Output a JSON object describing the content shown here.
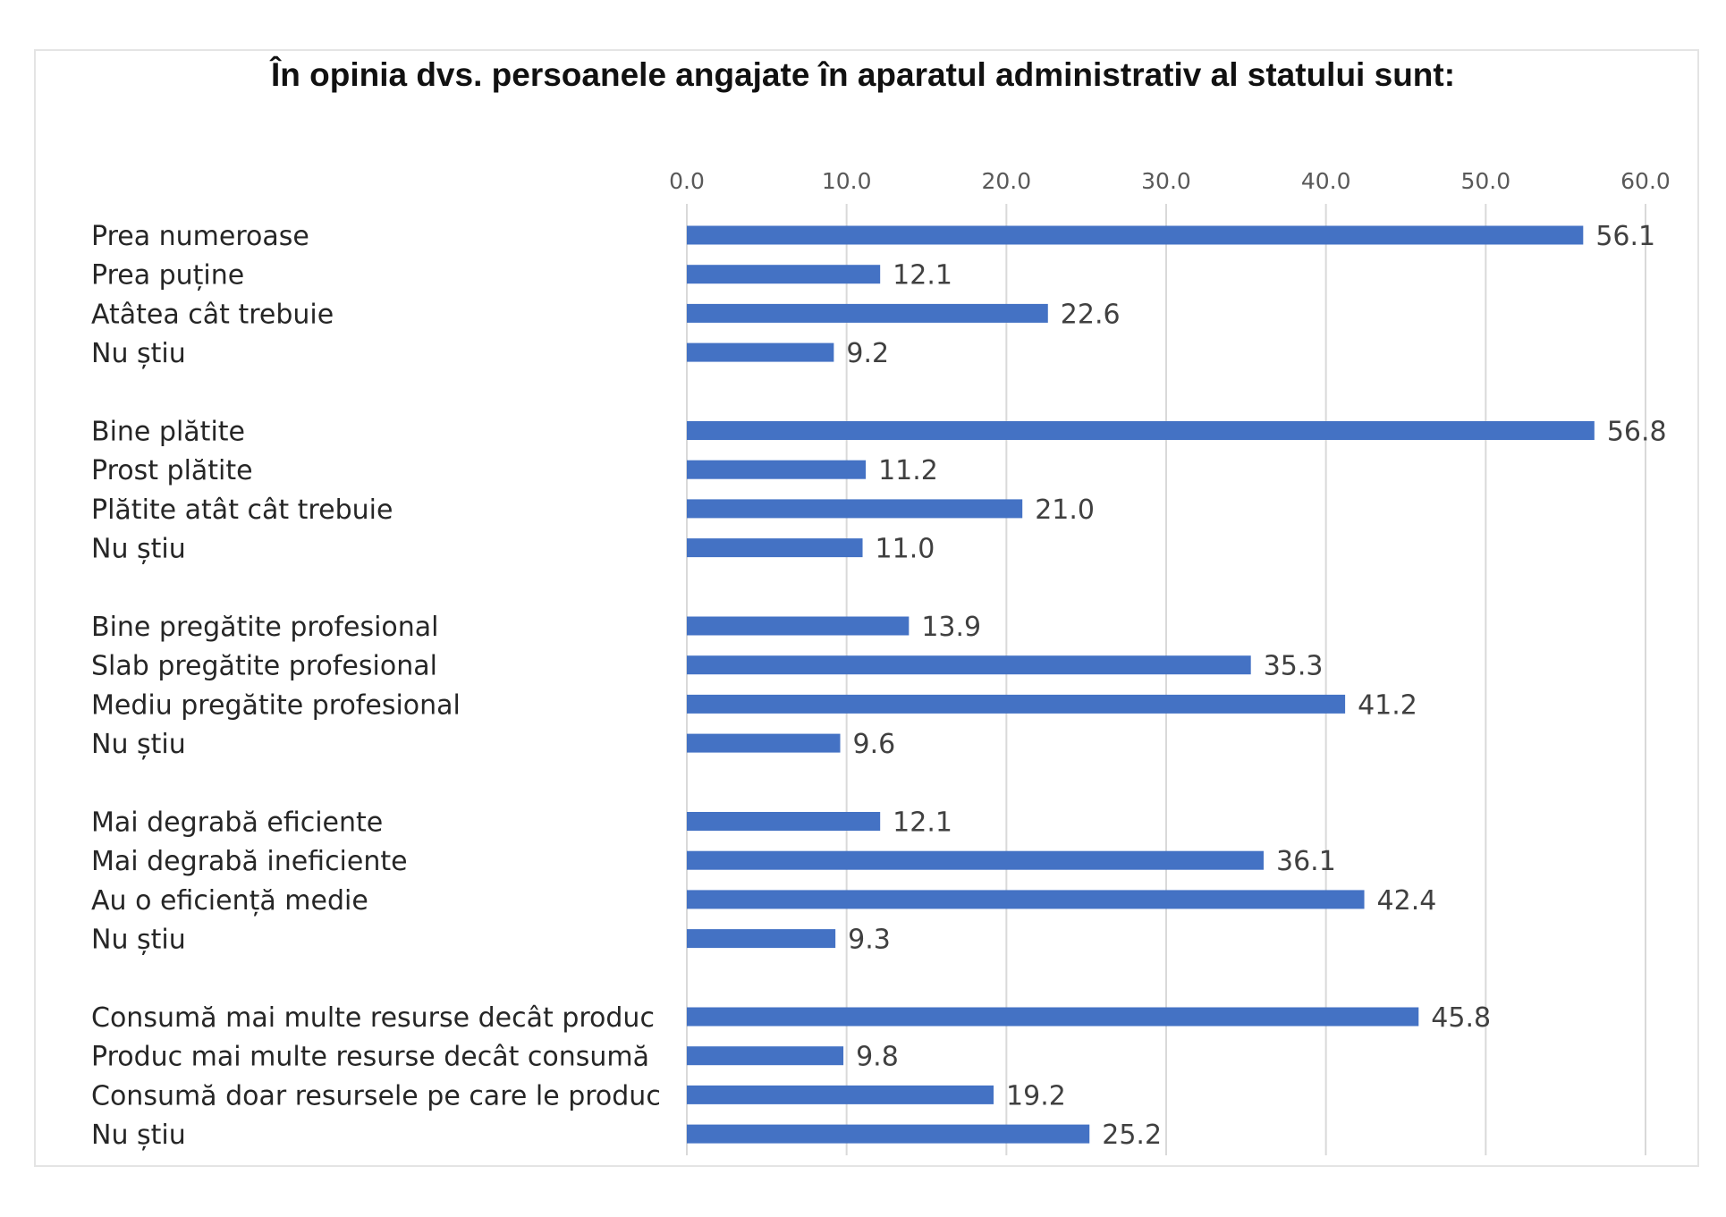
{
  "chart_data": {
    "type": "bar",
    "orientation": "horizontal",
    "title": "În opinia dvs. persoanele angajate în aparatul administrativ al statului sunt:",
    "xlim": [
      0,
      60
    ],
    "x_ticks": [
      "0.0",
      "10.0",
      "20.0",
      "30.0",
      "40.0",
      "50.0",
      "60.0"
    ],
    "x_axis_position": "top",
    "grid": true,
    "legend": "none",
    "bar_color": "#4472C4",
    "groups": [
      {
        "categories": [
          "Prea numeroase",
          "Prea puține",
          "Atâtea cât trebuie",
          "Nu știu"
        ],
        "values": [
          56.1,
          12.1,
          22.6,
          9.2
        ],
        "labels": [
          "56.1",
          "12.1",
          "22.6",
          "9.2"
        ]
      },
      {
        "categories": [
          "Bine plătite",
          "Prost plătite",
          "Plătite atât cât trebuie",
          "Nu știu"
        ],
        "values": [
          56.8,
          11.2,
          21.0,
          11.0
        ],
        "labels": [
          "56.8",
          "11.2",
          "21.0",
          "11.0"
        ]
      },
      {
        "categories": [
          "Bine pregătite profesional",
          "Slab pregătite profesional",
          "Mediu pregătite profesional",
          "Nu știu"
        ],
        "values": [
          13.9,
          35.3,
          41.2,
          9.6
        ],
        "labels": [
          "13.9",
          "35.3",
          "41.2",
          "9.6"
        ]
      },
      {
        "categories": [
          "Mai degrabă eficiente",
          "Mai degrabă ineficiente",
          "Au o eficiență medie",
          "Nu știu"
        ],
        "values": [
          12.1,
          36.1,
          42.4,
          9.3
        ],
        "labels": [
          "12.1",
          "36.1",
          "42.4",
          "9.3"
        ]
      },
      {
        "categories": [
          "Consumă mai multe resurse decât produc",
          "Produc mai multe resurse decât consumă",
          "Consumă doar resursele pe care le produc",
          "Nu știu"
        ],
        "values": [
          45.8,
          9.8,
          19.2,
          25.2
        ],
        "labels": [
          "45.8",
          "9.8",
          "19.2",
          "25.2"
        ]
      }
    ]
  }
}
